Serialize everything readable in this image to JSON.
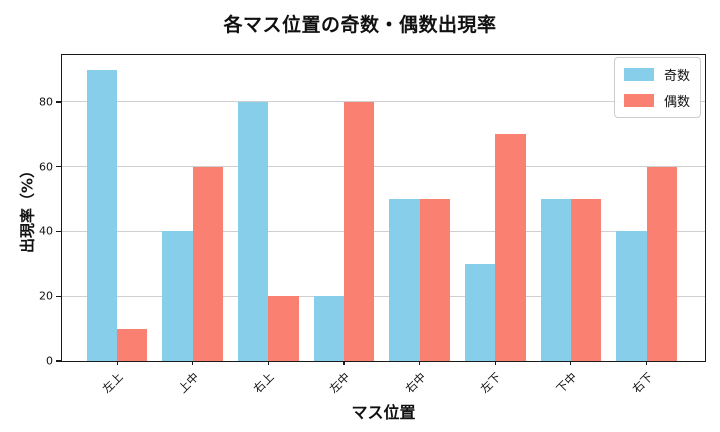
{
  "chart_data": {
    "type": "bar",
    "title": "各マス位置の奇数・偶数出現率",
    "xlabel": "マス位置",
    "ylabel": "出現率（%）",
    "categories": [
      "左上",
      "上中",
      "右上",
      "左中",
      "右中",
      "左下",
      "下中",
      "右下"
    ],
    "series": [
      {
        "name": "奇数",
        "color": "#87CEEB",
        "values": [
          90,
          40,
          80,
          20,
          50,
          30,
          50,
          40
        ]
      },
      {
        "name": "偶数",
        "color": "#FA8072",
        "values": [
          10,
          60,
          20,
          80,
          50,
          70,
          50,
          60
        ]
      }
    ],
    "yticks": [
      0,
      20,
      40,
      60,
      80
    ],
    "ylim": [
      0,
      94.5
    ],
    "grid": "horizontal",
    "legend_position": "upper-right",
    "xtick_rotation_deg": 45,
    "axis_color": "#1a1a1a",
    "grid_color": "#cfcfcf",
    "legend_border_color": "#cccccc"
  }
}
